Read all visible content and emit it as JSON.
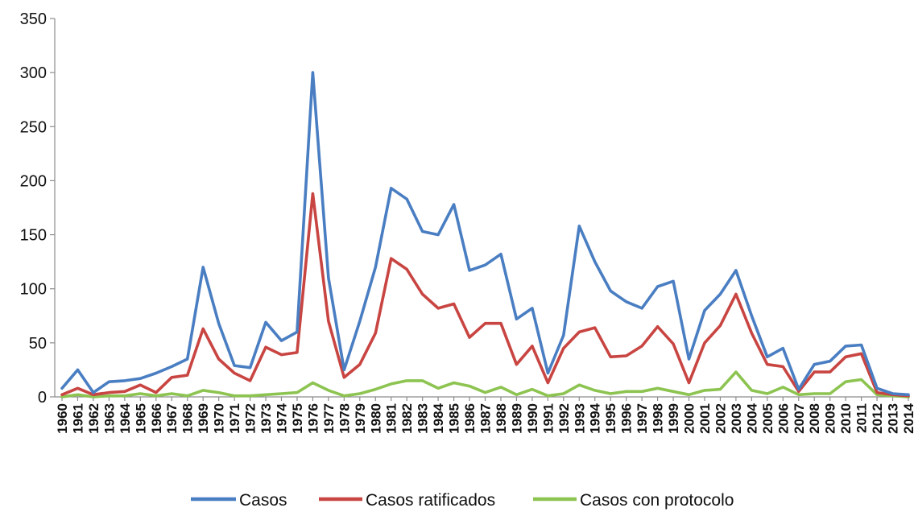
{
  "chart_data": {
    "type": "line",
    "title": "",
    "xlabel": "",
    "ylabel": "",
    "ylim": [
      0,
      350
    ],
    "yticks": [
      0,
      50,
      100,
      150,
      200,
      250,
      300,
      350
    ],
    "grid": false,
    "legend_placement": "bottom",
    "categories": [
      "1960",
      "1961",
      "1962",
      "1963",
      "1964",
      "1965",
      "1966",
      "1967",
      "1968",
      "1969",
      "1970",
      "1971",
      "1972",
      "1973",
      "1974",
      "1975",
      "1976",
      "1977",
      "1978",
      "1979",
      "1980",
      "1981",
      "1982",
      "1983",
      "1984",
      "1985",
      "1986",
      "1987",
      "1988",
      "1989",
      "1990",
      "1991",
      "1992",
      "1993",
      "1994",
      "1995",
      "1996",
      "1997",
      "1998",
      "1999",
      "2000",
      "2001",
      "2002",
      "2003",
      "2004",
      "2005",
      "2006",
      "2007",
      "2008",
      "2009",
      "2010",
      "2011",
      "2012",
      "2013",
      "2014"
    ],
    "series": [
      {
        "name": "Casos",
        "color": "#4a7ec2",
        "values": [
          8,
          25,
          4,
          14,
          15,
          17,
          22,
          28,
          35,
          120,
          68,
          29,
          27,
          69,
          52,
          60,
          300,
          110,
          25,
          70,
          120,
          193,
          183,
          153,
          150,
          178,
          117,
          122,
          132,
          72,
          82,
          22,
          57,
          158,
          125,
          98,
          88,
          82,
          102,
          107,
          35,
          80,
          95,
          117,
          75,
          37,
          45,
          7,
          30,
          33,
          47,
          48,
          8,
          3,
          2
        ]
      },
      {
        "name": "Casos ratificados",
        "color": "#c84542",
        "values": [
          2,
          8,
          2,
          4,
          5,
          11,
          4,
          18,
          20,
          63,
          35,
          22,
          15,
          46,
          39,
          41,
          188,
          70,
          18,
          30,
          59,
          128,
          118,
          95,
          82,
          86,
          55,
          68,
          68,
          30,
          47,
          13,
          45,
          60,
          64,
          37,
          38,
          47,
          65,
          49,
          13,
          50,
          66,
          95,
          59,
          30,
          28,
          5,
          23,
          23,
          37,
          40,
          4,
          2,
          1
        ]
      },
      {
        "name": "Casos con protocolo",
        "color": "#8dc451",
        "values": [
          0,
          2,
          0,
          1,
          1,
          3,
          1,
          3,
          1,
          6,
          4,
          1,
          1,
          2,
          3,
          4,
          13,
          6,
          1,
          3,
          7,
          12,
          15,
          15,
          8,
          13,
          10,
          4,
          9,
          2,
          7,
          1,
          3,
          11,
          6,
          3,
          5,
          5,
          8,
          5,
          2,
          6,
          7,
          23,
          6,
          3,
          9,
          2,
          3,
          3,
          14,
          16,
          2,
          1,
          0
        ]
      }
    ]
  },
  "colors": {
    "axis": "#8c8c8c",
    "text": "#111111",
    "background": "#ffffff"
  }
}
